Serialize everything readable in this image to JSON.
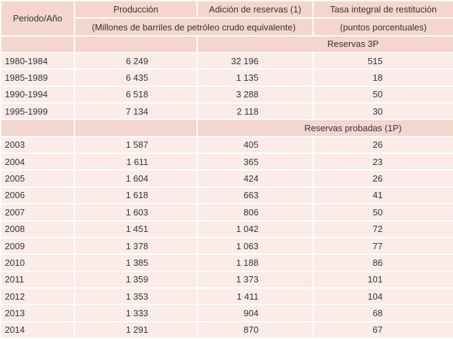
{
  "header": {
    "period": "Periodo/Año",
    "production": "Producción",
    "addition": "Adición de reservas (1)",
    "rate": "Tasa integral de restitución",
    "units": "(Millones de barriles de petróleo crudo equivalente)",
    "rate_units": "(puntos porcentuales)"
  },
  "sections": [
    {
      "label": "Reservas 3P",
      "rows": [
        [
          "1980-1984",
          "6 249",
          "32 196",
          "515"
        ],
        [
          "1985-1989",
          "6 435",
          "1 135",
          "18"
        ],
        [
          "1990-1994",
          "6 518",
          "3 288",
          "50"
        ],
        [
          "1995-1999",
          "7 134",
          "2 118",
          "30"
        ]
      ]
    },
    {
      "label": "Reservas probadas (1P)",
      "rows": [
        [
          "2003",
          "1 587",
          "405",
          "26"
        ],
        [
          "2004",
          "1 611",
          "365",
          "23"
        ],
        [
          "2005",
          "1 604",
          "424",
          "26"
        ],
        [
          "2006",
          "1 618",
          "663",
          "41"
        ],
        [
          "2007",
          "1 603",
          "806",
          "50"
        ],
        [
          "2008",
          "1 451",
          "1 042",
          "72"
        ],
        [
          "2009",
          "1 378",
          "1 063",
          "77"
        ],
        [
          "2010",
          "1 385",
          "1 188",
          "86"
        ],
        [
          "2011",
          "1 359",
          "1 373",
          "101"
        ],
        [
          "2012",
          "1 353",
          "1 411",
          "104"
        ],
        [
          "2013",
          "1 333",
          "904",
          "68"
        ],
        [
          "2014",
          "1 291",
          "870",
          "67"
        ]
      ]
    }
  ]
}
